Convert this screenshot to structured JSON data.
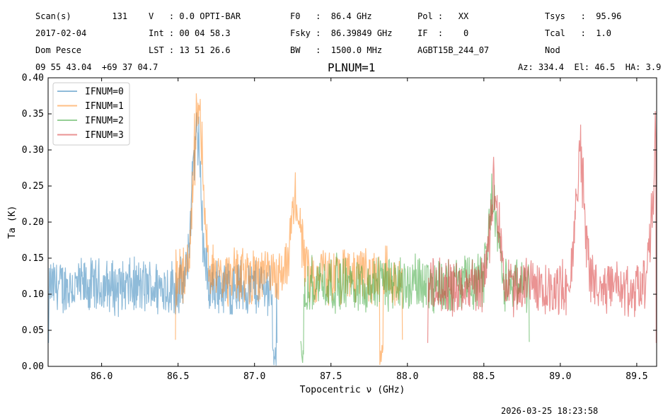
{
  "header": {
    "row1": {
      "scan": "Scan(s)        131",
      "velocity": "V   : 0.0 OPTI-BAR",
      "f0": "F0   :  86.4 GHz",
      "pol": "Pol :   XX",
      "tsys": "Tsys   :  95.96"
    },
    "row2": {
      "date": "2017-02-04",
      "int": "Int : 00 04 58.3",
      "fsky": "Fsky :  86.39849 GHz",
      "if": "IF  :    0",
      "tcal": "Tcal   :  1.0"
    },
    "row3": {
      "observer": "Dom Pesce",
      "lst": "LST : 13 51 26.6",
      "bw": "BW   :  1500.0 MHz",
      "project": "AGBT15B_244_07",
      "proc": "Nod"
    },
    "row4": {
      "coords": "09 55 43.04  +69 37 04.7",
      "azel": "Az: 334.4  El: 46.5  HA: 3.9"
    }
  },
  "footer": {
    "timestamp": "2026-03-25 18:23:58"
  },
  "chart_data": {
    "type": "line",
    "title": "PLNUM=1",
    "xlabel": "Topocentric ν (GHz)",
    "ylabel": "Ta (K)",
    "xlim": [
      85.65,
      89.63
    ],
    "ylim": [
      0.0,
      0.4
    ],
    "xticks": [
      86.0,
      86.5,
      87.0,
      87.5,
      88.0,
      88.5,
      89.0,
      89.5
    ],
    "xtick_labels": [
      "86.0",
      "86.5",
      "87.0",
      "87.5",
      "88.0",
      "88.5",
      "89.0",
      "89.5"
    ],
    "yticks": [
      0.0,
      0.05,
      0.1,
      0.15,
      0.2,
      0.25,
      0.3,
      0.35,
      0.4
    ],
    "ytick_labels": [
      "0.00",
      "0.05",
      "0.10",
      "0.15",
      "0.20",
      "0.25",
      "0.30",
      "0.35",
      "0.40"
    ],
    "legend_position": "top-left",
    "grid": false,
    "series": [
      {
        "name": "IFNUM=0",
        "color": "#1f77b4",
        "x_range": [
          85.65,
          87.15
        ],
        "base": 0.11,
        "noise": 0.045,
        "features": [
          {
            "x": 86.62,
            "y": 0.363
          },
          {
            "x": 87.13,
            "y": 0.0
          }
        ]
      },
      {
        "name": "IFNUM=1",
        "color": "#ff7f0e",
        "x_range": [
          86.48,
          87.97
        ],
        "base": 0.125,
        "noise": 0.045,
        "features": [
          {
            "x": 86.63,
            "y": 0.4
          },
          {
            "x": 87.27,
            "y": 0.245
          },
          {
            "x": 87.83,
            "y": 0.0
          }
        ]
      },
      {
        "name": "IFNUM=2",
        "color": "#2ca02c",
        "x_range": [
          87.3,
          88.8
        ],
        "base": 0.115,
        "noise": 0.045,
        "features": [
          {
            "x": 88.56,
            "y": 0.26
          },
          {
            "x": 87.31,
            "y": 0.0
          }
        ]
      },
      {
        "name": "IFNUM=3",
        "color": "#d62728",
        "x_range": [
          88.13,
          89.63
        ],
        "base": 0.11,
        "noise": 0.045,
        "features": [
          {
            "x": 88.57,
            "y": 0.273
          },
          {
            "x": 89.13,
            "y": 0.32
          },
          {
            "x": 89.63,
            "y": 0.332
          }
        ]
      }
    ]
  }
}
